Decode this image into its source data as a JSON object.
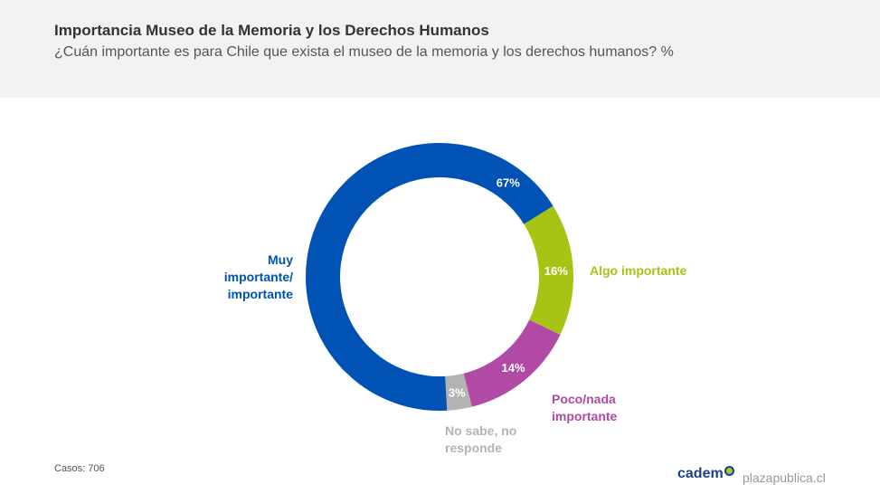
{
  "header": {
    "title": "Importancia Museo de la Memoria y los Derechos Humanos",
    "subtitle": "¿Cuán importante es para Chile que exista el museo de la memoria y los derechos humanos? %"
  },
  "chart_data": {
    "type": "pie",
    "title": "Importancia Museo de la Memoria y los Derechos Humanos",
    "subtitle": "¿Cuán importante es para Chile que exista el museo de la memoria y los derechos humanos? %",
    "donut": true,
    "slices": [
      {
        "label": "Algo importante",
        "value": 16,
        "display": "16%",
        "color": "#a7c415"
      },
      {
        "label": "Poco/nada importante",
        "value": 14,
        "display": "14%",
        "color": "#b04aa5"
      },
      {
        "label": "No sabe, no responde",
        "value": 3,
        "display": "3%",
        "color": "#b3b3b3"
      },
      {
        "label": "Muy importante/ importante",
        "value": 67,
        "display": "67%",
        "color": "#0052b4"
      }
    ]
  },
  "footer": {
    "casos": "Casos: 706",
    "logo": "cadem",
    "site": "plazapublica.cl"
  }
}
